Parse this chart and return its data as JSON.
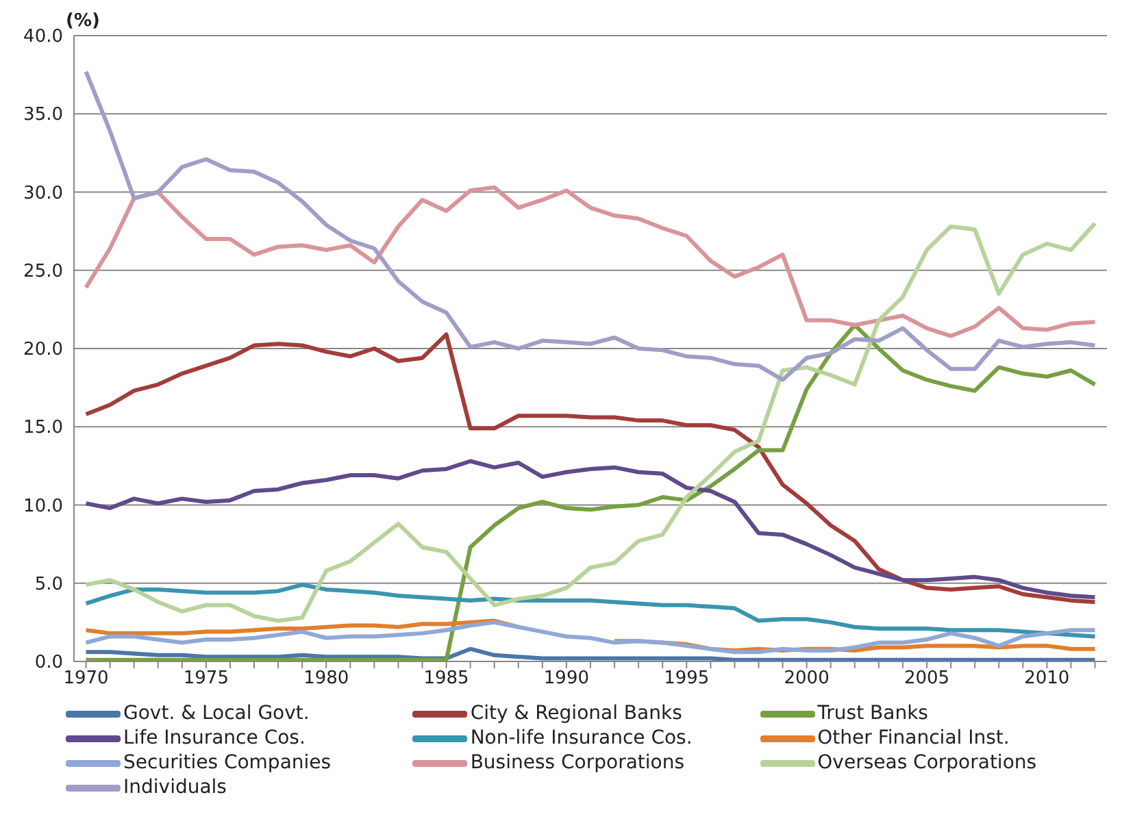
{
  "chart_data": {
    "type": "line",
    "ylabel": "(%)",
    "x": [
      1970,
      1971,
      1972,
      1973,
      1974,
      1975,
      1976,
      1977,
      1978,
      1979,
      1980,
      1981,
      1982,
      1983,
      1984,
      1985,
      1986,
      1987,
      1988,
      1989,
      1990,
      1991,
      1992,
      1993,
      1994,
      1995,
      1996,
      1997,
      1998,
      1999,
      2000,
      2001,
      2002,
      2003,
      2004,
      2005,
      2006,
      2007,
      2008,
      2009,
      2010,
      2011,
      2012
    ],
    "xlim": [
      1969.5,
      2012.5
    ],
    "xticks": [
      {
        "value": 1970,
        "label": "1970"
      },
      {
        "value": 1971,
        "label": null
      },
      {
        "value": 1972,
        "label": null
      },
      {
        "value": 1973,
        "label": null
      },
      {
        "value": 1974,
        "label": null
      },
      {
        "value": 1975,
        "label": "1975"
      },
      {
        "value": 1976,
        "label": null
      },
      {
        "value": 1977,
        "label": null
      },
      {
        "value": 1978,
        "label": null
      },
      {
        "value": 1979,
        "label": null
      },
      {
        "value": 1980,
        "label": "1980"
      },
      {
        "value": 1981,
        "label": null
      },
      {
        "value": 1982,
        "label": null
      },
      {
        "value": 1983,
        "label": null
      },
      {
        "value": 1984,
        "label": null
      },
      {
        "value": 1985,
        "label": "1985"
      },
      {
        "value": 1986,
        "label": null
      },
      {
        "value": 1987,
        "label": null
      },
      {
        "value": 1988,
        "label": null
      },
      {
        "value": 1989,
        "label": null
      },
      {
        "value": 1990,
        "label": "1990"
      },
      {
        "value": 1991,
        "label": null
      },
      {
        "value": 1992,
        "label": null
      },
      {
        "value": 1993,
        "label": null
      },
      {
        "value": 1994,
        "label": null
      },
      {
        "value": 1995,
        "label": "1995"
      },
      {
        "value": 1996,
        "label": null
      },
      {
        "value": 1997,
        "label": null
      },
      {
        "value": 1998,
        "label": null
      },
      {
        "value": 1999,
        "label": null
      },
      {
        "value": 2000,
        "label": "2000"
      },
      {
        "value": 2001,
        "label": null
      },
      {
        "value": 2002,
        "label": null
      },
      {
        "value": 2003,
        "label": null
      },
      {
        "value": 2004,
        "label": null
      },
      {
        "value": 2005,
        "label": "2005"
      },
      {
        "value": 2006,
        "label": null
      },
      {
        "value": 2007,
        "label": null
      },
      {
        "value": 2008,
        "label": null
      },
      {
        "value": 2009,
        "label": null
      },
      {
        "value": 2010,
        "label": "2010"
      },
      {
        "value": 2011,
        "label": null
      },
      {
        "value": 2012,
        "label": null
      }
    ],
    "ylim": [
      0,
      40
    ],
    "yticks": [
      {
        "value": 0,
        "label": "0.0"
      },
      {
        "value": 5,
        "label": "5.0"
      },
      {
        "value": 10,
        "label": "10.0"
      },
      {
        "value": 15,
        "label": "15.0"
      },
      {
        "value": 20,
        "label": "20.0"
      },
      {
        "value": 25,
        "label": "25.0"
      },
      {
        "value": 30,
        "label": "30.0"
      },
      {
        "value": 35,
        "label": "35.0"
      },
      {
        "value": 40,
        "label": "40.0"
      }
    ],
    "grid": "y",
    "legend": "bottom",
    "marker": "none",
    "line_style": "solid",
    "series": [
      {
        "name": "Govt. & Local Govt.",
        "color": "#4a76a8",
        "values": [
          0.6,
          0.6,
          0.5,
          0.4,
          0.4,
          0.3,
          0.3,
          0.3,
          0.3,
          0.4,
          0.3,
          0.3,
          0.3,
          0.3,
          0.2,
          0.2,
          0.8,
          0.4,
          0.3,
          0.2,
          0.2,
          0.2,
          0.2,
          0.2,
          0.2,
          0.2,
          0.2,
          0.1,
          0.1,
          0.1,
          0.1,
          0.1,
          0.1,
          0.1,
          0.1,
          0.1,
          0.1,
          0.1,
          0.1,
          0.1,
          0.1,
          0.1,
          0.1
        ]
      },
      {
        "name": "City & Regional Banks",
        "color": "#a33d3a",
        "values": [
          15.8,
          16.4,
          17.3,
          17.7,
          18.4,
          18.9,
          19.4,
          20.2,
          20.3,
          20.2,
          19.8,
          19.5,
          20.0,
          19.2,
          19.4,
          20.9,
          14.9,
          14.9,
          15.7,
          15.7,
          15.7,
          15.6,
          15.6,
          15.4,
          15.4,
          15.1,
          15.1,
          14.8,
          13.7,
          11.3,
          10.1,
          8.7,
          7.7,
          5.9,
          5.2,
          4.7,
          4.6,
          4.7,
          4.8,
          4.3,
          4.1,
          3.9,
          3.8
        ]
      },
      {
        "name": "Trust Banks",
        "color": "#77a042",
        "values": [
          0.1,
          0.1,
          0.1,
          0.1,
          0.1,
          0.1,
          0.1,
          0.1,
          0.1,
          0.1,
          0.1,
          0.1,
          0.1,
          0.1,
          0.1,
          0.1,
          7.3,
          8.7,
          9.8,
          10.2,
          9.8,
          9.7,
          9.9,
          10.0,
          10.5,
          10.3,
          11.2,
          12.3,
          13.5,
          13.5,
          17.4,
          19.7,
          21.5,
          20.0,
          18.6,
          18.0,
          17.6,
          17.3,
          18.8,
          18.4,
          18.2,
          18.6,
          17.7
        ]
      },
      {
        "name": "Life Insurance Cos.",
        "color": "#5e4a8c",
        "values": [
          10.1,
          9.8,
          10.4,
          10.1,
          10.4,
          10.2,
          10.3,
          10.9,
          11.0,
          11.4,
          11.6,
          11.9,
          11.9,
          11.7,
          12.2,
          12.3,
          12.8,
          12.4,
          12.7,
          11.8,
          12.1,
          12.3,
          12.4,
          12.1,
          12.0,
          11.1,
          10.9,
          10.2,
          8.2,
          8.1,
          7.5,
          6.8,
          6.0,
          5.6,
          5.2,
          5.2,
          5.3,
          5.4,
          5.2,
          4.7,
          4.4,
          4.2,
          4.1
        ]
      },
      {
        "name": "Non-life Insurance Cos.",
        "color": "#3a95b0",
        "values": [
          3.7,
          4.2,
          4.6,
          4.6,
          4.5,
          4.4,
          4.4,
          4.4,
          4.5,
          4.9,
          4.6,
          4.5,
          4.4,
          4.2,
          4.1,
          4.0,
          3.9,
          4.0,
          3.9,
          3.9,
          3.9,
          3.9,
          3.8,
          3.7,
          3.6,
          3.6,
          3.5,
          3.4,
          2.6,
          2.7,
          2.7,
          2.5,
          2.2,
          2.1,
          2.1,
          2.1,
          2.0,
          2.0,
          2.0,
          1.9,
          1.8,
          1.7,
          1.6
        ]
      },
      {
        "name": "Other Financial Inst.",
        "color": "#e07f2e",
        "values": [
          2.0,
          1.8,
          1.8,
          1.8,
          1.8,
          1.9,
          1.9,
          2.0,
          2.1,
          2.1,
          2.2,
          2.3,
          2.3,
          2.2,
          2.4,
          2.4,
          2.5,
          2.6,
          2.2,
          null,
          null,
          null,
          1.3,
          1.3,
          1.2,
          1.1,
          0.8,
          0.7,
          0.8,
          0.7,
          0.8,
          0.8,
          0.7,
          0.9,
          0.9,
          1.0,
          1.0,
          1.0,
          0.9,
          1.0,
          1.0,
          0.8,
          0.8
        ]
      },
      {
        "name": "Securities Companies",
        "color": "#8fa8d8",
        "values": [
          1.2,
          1.6,
          1.6,
          1.4,
          1.2,
          1.4,
          1.4,
          1.5,
          1.7,
          1.9,
          1.5,
          1.6,
          1.6,
          1.7,
          1.8,
          2.0,
          2.3,
          2.5,
          2.2,
          1.9,
          1.6,
          1.5,
          1.2,
          1.3,
          1.2,
          1.0,
          0.8,
          0.6,
          0.6,
          0.8,
          0.7,
          0.7,
          0.9,
          1.2,
          1.2,
          1.4,
          1.8,
          1.5,
          1.0,
          1.6,
          1.8,
          2.0,
          2.0
        ]
      },
      {
        "name": "Business Corporations",
        "color": "#d9949a",
        "values": [
          23.9,
          26.4,
          29.6,
          30.0,
          28.4,
          27.0,
          27.0,
          26.0,
          26.5,
          26.6,
          26.3,
          26.6,
          25.5,
          27.8,
          29.5,
          28.8,
          30.1,
          30.3,
          29.0,
          29.5,
          30.1,
          29.0,
          28.5,
          28.3,
          27.7,
          27.2,
          25.6,
          24.6,
          25.2,
          26.0,
          21.8,
          21.8,
          21.5,
          21.8,
          22.1,
          21.3,
          20.8,
          21.4,
          22.6,
          21.3,
          21.2,
          21.6,
          21.7
        ]
      },
      {
        "name": "Overseas Corporations",
        "color": "#b7d39a",
        "values": [
          4.9,
          5.2,
          4.6,
          3.8,
          3.2,
          3.6,
          3.6,
          2.9,
          2.6,
          2.8,
          5.8,
          6.4,
          7.6,
          8.8,
          7.3,
          7.0,
          5.3,
          3.6,
          4.0,
          4.2,
          4.7,
          6.0,
          6.3,
          7.7,
          8.1,
          10.5,
          11.9,
          13.4,
          14.1,
          18.6,
          18.8,
          18.3,
          17.7,
          21.8,
          23.3,
          26.3,
          27.8,
          27.6,
          23.5,
          26.0,
          26.7,
          26.3,
          28.0
        ]
      },
      {
        "name": "Individuals",
        "color": "#a09ec8",
        "values": [
          37.7,
          33.9,
          29.6,
          30.0,
          31.6,
          32.1,
          31.4,
          31.3,
          30.6,
          29.4,
          27.9,
          26.9,
          26.4,
          24.3,
          23.0,
          22.3,
          20.1,
          20.4,
          20.0,
          20.5,
          20.4,
          20.3,
          20.7,
          20.0,
          19.9,
          19.5,
          19.4,
          19.0,
          18.9,
          18.0,
          19.4,
          19.7,
          20.6,
          20.5,
          21.3,
          19.9,
          18.7,
          18.7,
          20.5,
          20.1,
          20.3,
          20.4,
          20.2
        ]
      }
    ]
  }
}
